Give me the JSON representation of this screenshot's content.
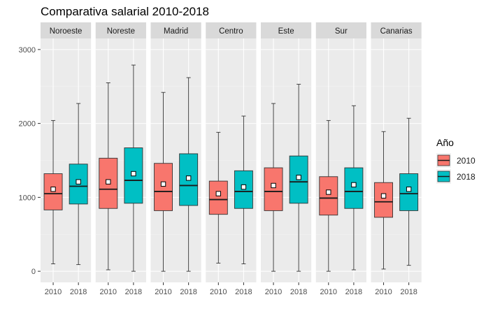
{
  "chart_data": {
    "type": "boxplot",
    "title": "Comparativa salarial 2010-2018",
    "xlabel": "",
    "ylabel": "",
    "ylim": [
      -150,
      3150
    ],
    "y_ticks": [
      0,
      1000,
      2000,
      3000
    ],
    "grid": true,
    "legend": {
      "title": "Año",
      "placement": "right",
      "entries": [
        {
          "label": "2010",
          "color": "#F8766D"
        },
        {
          "label": "2018",
          "color": "#00BFC4"
        }
      ]
    },
    "facets": [
      {
        "label": "Noroeste",
        "boxes": [
          {
            "category": "2010",
            "min": 100,
            "q1": 830,
            "median": 1050,
            "q3": 1320,
            "max": 2040,
            "mean": 1110
          },
          {
            "category": "2018",
            "min": 90,
            "q1": 910,
            "median": 1150,
            "q3": 1450,
            "max": 2270,
            "mean": 1210
          }
        ]
      },
      {
        "label": "Noreste",
        "boxes": [
          {
            "category": "2010",
            "min": 20,
            "q1": 850,
            "median": 1110,
            "q3": 1530,
            "max": 2550,
            "mean": 1210
          },
          {
            "category": "2018",
            "min": 0,
            "q1": 920,
            "median": 1230,
            "q3": 1670,
            "max": 2790,
            "mean": 1320
          }
        ]
      },
      {
        "label": "Madrid",
        "boxes": [
          {
            "category": "2010",
            "min": 0,
            "q1": 820,
            "median": 1080,
            "q3": 1460,
            "max": 2420,
            "mean": 1180
          },
          {
            "category": "2018",
            "min": 0,
            "q1": 890,
            "median": 1160,
            "q3": 1590,
            "max": 2620,
            "mean": 1260
          }
        ]
      },
      {
        "label": "Centro",
        "boxes": [
          {
            "category": "2010",
            "min": 110,
            "q1": 770,
            "median": 970,
            "q3": 1220,
            "max": 1880,
            "mean": 1050
          },
          {
            "category": "2018",
            "min": 100,
            "q1": 850,
            "median": 1080,
            "q3": 1360,
            "max": 2100,
            "mean": 1140
          }
        ]
      },
      {
        "label": "Este",
        "boxes": [
          {
            "category": "2010",
            "min": 0,
            "q1": 820,
            "median": 1080,
            "q3": 1400,
            "max": 2270,
            "mean": 1160
          },
          {
            "category": "2018",
            "min": 0,
            "q1": 920,
            "median": 1210,
            "q3": 1560,
            "max": 2530,
            "mean": 1270
          }
        ]
      },
      {
        "label": "Sur",
        "boxes": [
          {
            "category": "2010",
            "min": 0,
            "q1": 760,
            "median": 990,
            "q3": 1280,
            "max": 2040,
            "mean": 1070
          },
          {
            "category": "2018",
            "min": 20,
            "q1": 850,
            "median": 1080,
            "q3": 1400,
            "max": 2240,
            "mean": 1170
          }
        ]
      },
      {
        "label": "Canarias",
        "boxes": [
          {
            "category": "2010",
            "min": 30,
            "q1": 730,
            "median": 940,
            "q3": 1200,
            "max": 1890,
            "mean": 1020
          },
          {
            "category": "2018",
            "min": 80,
            "q1": 820,
            "median": 1050,
            "q3": 1320,
            "max": 2070,
            "mean": 1110
          }
        ]
      }
    ]
  }
}
